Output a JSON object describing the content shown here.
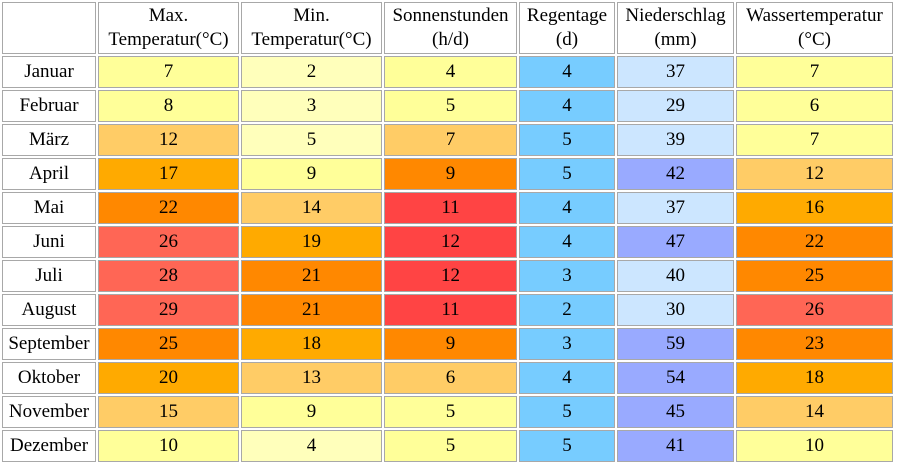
{
  "headers": [
    "",
    "Max. Temperatur(°C)",
    "Min. Temperatur(°C)",
    "Sonnenstunden (h/d)",
    "Regentage (d)",
    "Niederschlag (mm)",
    "Wassertemperatur (°C)"
  ],
  "header_lines": [
    [
      "Max.",
      "Temperatur(°C)"
    ],
    [
      "Min.",
      "Temperatur(°C)"
    ],
    [
      "Sonnenstunden",
      "(h/d)"
    ],
    [
      "Regentage",
      "(d)"
    ],
    [
      "Niederschlag",
      "(mm)"
    ],
    [
      "Wassertemperatur",
      "(°C)"
    ]
  ],
  "rows": [
    {
      "month": "Januar",
      "values": [
        "7",
        "2",
        "4",
        "4",
        "37",
        "7"
      ],
      "colors": [
        "#ffff99",
        "#ffffbb",
        "#ffff99",
        "#77ccff",
        "#cce6ff",
        "#ffff99"
      ]
    },
    {
      "month": "Februar",
      "values": [
        "8",
        "3",
        "5",
        "4",
        "29",
        "6"
      ],
      "colors": [
        "#ffff99",
        "#ffffbb",
        "#ffff99",
        "#77ccff",
        "#cce6ff",
        "#ffff99"
      ]
    },
    {
      "month": "März",
      "values": [
        "12",
        "5",
        "7",
        "5",
        "39",
        "7"
      ],
      "colors": [
        "#ffcc66",
        "#ffffbb",
        "#ffcc66",
        "#77ccff",
        "#cce6ff",
        "#ffff99"
      ]
    },
    {
      "month": "April",
      "values": [
        "17",
        "9",
        "9",
        "5",
        "42",
        "12"
      ],
      "colors": [
        "#ffaa00",
        "#ffff99",
        "#ff8800",
        "#77ccff",
        "#99aaff",
        "#ffcc66"
      ]
    },
    {
      "month": "Mai",
      "values": [
        "22",
        "14",
        "11",
        "4",
        "37",
        "16"
      ],
      "colors": [
        "#ff8800",
        "#ffcc66",
        "#ff4444",
        "#77ccff",
        "#cce6ff",
        "#ffaa00"
      ]
    },
    {
      "month": "Juni",
      "values": [
        "26",
        "19",
        "12",
        "4",
        "47",
        "22"
      ],
      "colors": [
        "#ff6655",
        "#ffaa00",
        "#ff4444",
        "#77ccff",
        "#99aaff",
        "#ff8800"
      ]
    },
    {
      "month": "Juli",
      "values": [
        "28",
        "21",
        "12",
        "3",
        "40",
        "25"
      ],
      "colors": [
        "#ff6655",
        "#ff8800",
        "#ff4444",
        "#77ccff",
        "#cce6ff",
        "#ff8800"
      ]
    },
    {
      "month": "August",
      "values": [
        "29",
        "21",
        "11",
        "2",
        "30",
        "26"
      ],
      "colors": [
        "#ff6655",
        "#ff8800",
        "#ff4444",
        "#77ccff",
        "#cce6ff",
        "#ff6655"
      ]
    },
    {
      "month": "September",
      "values": [
        "25",
        "18",
        "9",
        "3",
        "59",
        "23"
      ],
      "colors": [
        "#ff8800",
        "#ffaa00",
        "#ff8800",
        "#77ccff",
        "#99aaff",
        "#ff8800"
      ]
    },
    {
      "month": "Oktober",
      "values": [
        "20",
        "13",
        "6",
        "4",
        "54",
        "18"
      ],
      "colors": [
        "#ffaa00",
        "#ffcc66",
        "#ffcc66",
        "#77ccff",
        "#99aaff",
        "#ffaa00"
      ]
    },
    {
      "month": "November",
      "values": [
        "15",
        "9",
        "5",
        "5",
        "45",
        "14"
      ],
      "colors": [
        "#ffcc66",
        "#ffff99",
        "#ffff99",
        "#77ccff",
        "#99aaff",
        "#ffcc66"
      ]
    },
    {
      "month": "Dezember",
      "values": [
        "10",
        "4",
        "5",
        "5",
        "41",
        "10"
      ],
      "colors": [
        "#ffff99",
        "#ffffbb",
        "#ffff99",
        "#77ccff",
        "#99aaff",
        "#ffff99"
      ]
    }
  ]
}
